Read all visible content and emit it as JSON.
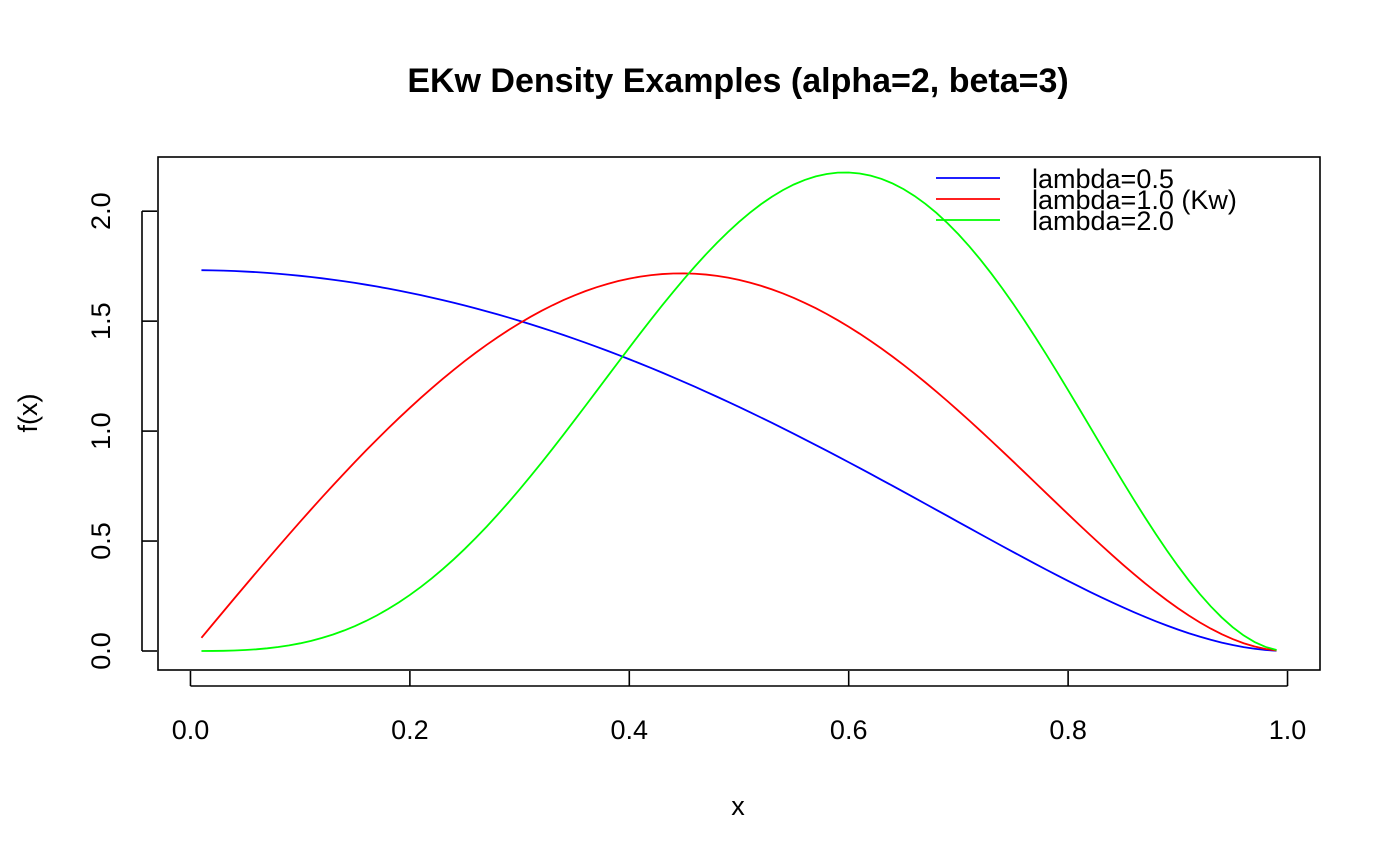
{
  "chart_data": {
    "type": "line",
    "title": "EKw Density Examples (alpha=2, beta=3)",
    "xlabel": "x",
    "ylabel": "f(x)",
    "xlim": [
      -0.0296,
      1.0296
    ],
    "ylim": [
      -0.0864,
      2.2464
    ],
    "x_ticks": [
      0.0,
      0.2,
      0.4,
      0.6,
      0.8,
      1.0
    ],
    "x_tick_labels": [
      "0.0",
      "0.2",
      "0.4",
      "0.6",
      "0.8",
      "1.0"
    ],
    "y_ticks": [
      0.0,
      0.5,
      1.0,
      1.5,
      2.0
    ],
    "y_tick_labels": [
      "0.0",
      "0.5",
      "1.0",
      "1.5",
      "2.0"
    ],
    "grid": false,
    "legend_position": "top-right",
    "x_range": [
      0.01,
      0.99
    ],
    "x_step": 0.01,
    "series": [
      {
        "name": "lambda=0.5",
        "color": "#0000ff",
        "lambda": 0.5,
        "alpha": 2,
        "beta": 3
      },
      {
        "name": "lambda=1.0 (Kw)",
        "color": "#ff0000",
        "lambda": 1.0,
        "alpha": 2,
        "beta": 3
      },
      {
        "name": "lambda=2.0",
        "color": "#00ff00",
        "lambda": 2.0,
        "alpha": 2,
        "beta": 3
      }
    ]
  }
}
